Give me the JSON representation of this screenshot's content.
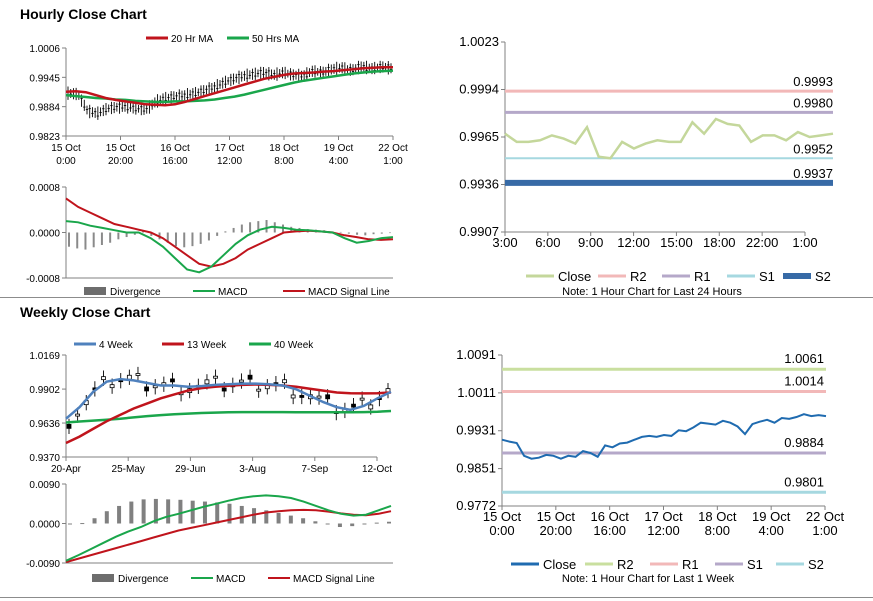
{
  "sections": {
    "hourly_title": "Hourly Close Chart",
    "weekly_title": "Weekly Close Chart"
  },
  "colors": {
    "ma_short": "#c0141c",
    "ma_long": "#1aa64b",
    "ma_4wk": "#4f81bd",
    "close_line": "#c4d79b",
    "r2": "#f2b8b8",
    "r1": "#b5a8c9",
    "s1": "#a6d8e0",
    "s2": "#376aa6",
    "divergence": "#6d6d6d",
    "weekly_close": "#1f6bb0",
    "weekly_r2": "#c9df9f",
    "weekly_r1": "#f2b8b8",
    "weekly_s1": "#b5a8c9",
    "weekly_s2": "#a6d8e0"
  },
  "chart_data": [
    {
      "id": "hourly-price",
      "type": "line",
      "title": "Hourly Close Chart",
      "legend": [
        "20 Hr MA",
        "50 Hrs MA"
      ],
      "y_ticks": [
        "1.0006",
        "0.9945",
        "0.9884",
        "0.9823"
      ],
      "ylim": [
        0.9823,
        1.0006
      ],
      "x_ticks": [
        "15 Oct\n0:00",
        "15 Oct\n20:00",
        "16 Oct\n16:00",
        "17 Oct\n12:00",
        "18 Oct\n8:00",
        "19 Oct\n4:00",
        "22 Oct\n1:00"
      ],
      "series": [
        {
          "name": "20 Hr MA",
          "values": [
            0.9915,
            0.9916,
            0.9914,
            0.9908,
            0.9902,
            0.9898,
            0.9895,
            0.9892,
            0.9889,
            0.9888,
            0.9887,
            0.9889,
            0.9894,
            0.99,
            0.9906,
            0.9912,
            0.9918,
            0.9924,
            0.993,
            0.9936,
            0.9942,
            0.9946,
            0.995,
            0.9953,
            0.9954,
            0.9955,
            0.9957,
            0.9958,
            0.996,
            0.9962,
            0.9964,
            0.9965,
            0.9966,
            0.9966
          ]
        },
        {
          "name": "50 Hrs MA",
          "values": [
            0.9908,
            0.9906,
            0.9904,
            0.9902,
            0.9901,
            0.9899,
            0.9898,
            0.9896,
            0.9895,
            0.9894,
            0.9894,
            0.9895,
            0.9895,
            0.9896,
            0.9897,
            0.9899,
            0.9902,
            0.9905,
            0.9909,
            0.9914,
            0.9919,
            0.9924,
            0.9929,
            0.9934,
            0.9938,
            0.9941,
            0.9944,
            0.9947,
            0.995,
            0.9953,
            0.9955,
            0.9957,
            0.9958,
            0.9959
          ]
        },
        {
          "name": "Close",
          "values": [
            0.9912,
            0.991,
            0.9875,
            0.987,
            0.988,
            0.9883,
            0.9884,
            0.988,
            0.9878,
            0.9895,
            0.9902,
            0.9905,
            0.9908,
            0.9912,
            0.9918,
            0.9925,
            0.9935,
            0.9942,
            0.9948,
            0.9952,
            0.9955,
            0.995,
            0.9955,
            0.995,
            0.9948,
            0.9958,
            0.9955,
            0.9962,
            0.9965,
            0.996,
            0.9968,
            0.9963,
            0.9967,
            0.9964
          ]
        }
      ]
    },
    {
      "id": "hourly-macd",
      "type": "line",
      "legend": [
        "Divergence",
        "MACD",
        "MACD Signal Line"
      ],
      "y_ticks": [
        "0.0008",
        "0.0000",
        "-0.0008"
      ],
      "ylim": [
        -0.0008,
        0.0008
      ],
      "series": [
        {
          "name": "Divergence",
          "values": [
            -0.00025,
            -0.00028,
            -0.0003,
            -0.00026,
            -0.00022,
            -0.00018,
            -0.00012,
            -8e-05,
            -4e-05,
            2e-05,
            -6e-05,
            -0.00012,
            -0.00018,
            -0.00024,
            -0.00026,
            -0.00024,
            -0.0002,
            -0.00014,
            -6e-05,
            2e-05,
            8e-05,
            0.00014,
            0.00018,
            0.0002,
            0.00022,
            0.00018,
            0.00014,
            0.0001,
            8e-05,
            6e-05,
            5e-05,
            4e-05,
            2e-05,
            1e-05,
            -2e-05,
            -4e-05,
            -5e-05,
            -3e-05,
            -2e-05,
            -1e-05
          ]
        },
        {
          "name": "MACD",
          "values": [
            0.0002,
            0.00018,
            0.00012,
            8e-05,
            4e-05,
            0.0,
            0.0,
            -0.0001,
            -0.00025,
            -0.00045,
            -0.00065,
            -0.0007,
            -0.0006,
            -0.0004,
            -0.0002,
            -5e-05,
            5e-05,
            0.0001,
            8e-05,
            5e-05,
            4e-05,
            2e-05,
            0.0,
            -0.0001,
            -0.00018,
            -0.00015,
            -0.0001,
            -8e-05
          ]
        },
        {
          "name": "MACD Signal Line",
          "values": [
            0.0006,
            0.00045,
            0.00035,
            0.00025,
            0.00015,
            0.0001,
            5e-05,
            0.0,
            -0.0001,
            -0.00025,
            -0.0004,
            -0.00055,
            -0.0006,
            -0.00055,
            -0.00045,
            -0.0003,
            -0.0002,
            -0.0001,
            0.0,
            2e-05,
            3e-05,
            2e-05,
            0.0,
            -5e-05,
            -8e-05,
            -0.00012,
            -0.00013,
            -0.00012
          ]
        }
      ]
    },
    {
      "id": "hourly-levels",
      "type": "line",
      "y_ticks": [
        "1.0023",
        "0.9994",
        "0.9965",
        "0.9936",
        "0.9907"
      ],
      "ylim": [
        0.9907,
        1.0023
      ],
      "x_ticks": [
        "3:00",
        "6:00",
        "9:00",
        "12:00",
        "15:00",
        "18:00",
        "22:00",
        "1:00"
      ],
      "levels": [
        {
          "name": "R2",
          "value": 0.9993,
          "label": "0.9993"
        },
        {
          "name": "R1",
          "value": 0.998,
          "label": "0.9980"
        },
        {
          "name": "S1",
          "value": 0.9952,
          "label": "0.9952"
        },
        {
          "name": "S2",
          "value": 0.9937,
          "label": "0.9937"
        }
      ],
      "series": [
        {
          "name": "Close",
          "values": [
            0.9967,
            0.9962,
            0.9962,
            0.9963,
            0.9966,
            0.9964,
            0.9961,
            0.9971,
            0.9953,
            0.9952,
            0.9962,
            0.9958,
            0.9961,
            0.9963,
            0.9962,
            0.9962,
            0.9974,
            0.9967,
            0.9976,
            0.9973,
            0.9972,
            0.9962,
            0.9966,
            0.9966,
            0.9963,
            0.9968,
            0.9965,
            0.9966,
            0.9967
          ]
        }
      ],
      "legend": [
        "Close",
        "R2",
        "R1",
        "S1",
        "S2"
      ],
      "note": "Note: 1 Hour Chart for Last 24 Hours"
    },
    {
      "id": "weekly-price",
      "type": "line",
      "title": "Weekly Close Chart",
      "legend": [
        "4 Week",
        "13 Week",
        "40 Week"
      ],
      "y_ticks": [
        "1.0169",
        "0.9902",
        "0.9636",
        "0.9370"
      ],
      "ylim": [
        0.937,
        1.0169
      ],
      "x_ticks": [
        "20-Apr",
        "25-May",
        "29-Jun",
        "3-Aug",
        "7-Sep",
        "12-Oct"
      ],
      "series": [
        {
          "name": "4 Week",
          "values": [
            0.967,
            0.976,
            0.988,
            0.996,
            0.998,
            0.997,
            0.995,
            0.993,
            0.993,
            0.992,
            0.9925,
            0.9935,
            0.994,
            0.9945,
            0.9945,
            0.994,
            0.993,
            0.99,
            0.985,
            0.98,
            0.976,
            0.974,
            0.977,
            0.983,
            0.988
          ]
        },
        {
          "name": "13 Week",
          "values": [
            0.948,
            0.953,
            0.959,
            0.965,
            0.97,
            0.975,
            0.979,
            0.983,
            0.986,
            0.989,
            0.991,
            0.992,
            0.9928,
            0.9935,
            0.9938,
            0.9935,
            0.993,
            0.992,
            0.9905,
            0.989,
            0.9875,
            0.987,
            0.9868,
            0.987,
            0.9875
          ]
        },
        {
          "name": "40 Week",
          "values": [
            0.964,
            0.9648,
            0.9655,
            0.9662,
            0.967,
            0.968,
            0.969,
            0.9698,
            0.9705,
            0.971,
            0.9715,
            0.9718,
            0.972,
            0.9722,
            0.9722,
            0.9722,
            0.9722,
            0.9721,
            0.972,
            0.972,
            0.972,
            0.9721,
            0.9722,
            0.9725,
            0.973
          ]
        }
      ]
    },
    {
      "id": "weekly-macd",
      "type": "line",
      "legend": [
        "Divergence",
        "MACD",
        "MACD Signal Line"
      ],
      "y_ticks": [
        "0.0090",
        "0.0000",
        "-0.0090"
      ],
      "ylim": [
        -0.009,
        0.009
      ],
      "series": [
        {
          "name": "Divergence",
          "values": [
            -0.0001,
            0.0001,
            0.0012,
            0.0028,
            0.004,
            0.005,
            0.0055,
            0.0056,
            0.0055,
            0.0054,
            0.0052,
            0.005,
            0.0048,
            0.0045,
            0.004,
            0.0035,
            0.003,
            0.0024,
            0.0018,
            0.0012,
            0.0005,
            0.0,
            -0.0008,
            -0.0006,
            -0.0002,
            0.0002,
            0.0004
          ]
        },
        {
          "name": "MACD",
          "values": [
            -0.0085,
            -0.0072,
            -0.0058,
            -0.0044,
            -0.003,
            -0.0018,
            -0.0008,
            0.0005,
            0.0015,
            0.0022,
            0.003,
            0.0038,
            0.0045,
            0.0052,
            0.0058,
            0.0062,
            0.0064,
            0.0062,
            0.0058,
            0.005,
            0.004,
            0.003,
            0.0022,
            0.0018,
            0.002,
            0.003,
            0.004
          ]
        },
        {
          "name": "MACD Signal Line",
          "values": [
            -0.0088,
            -0.008,
            -0.0072,
            -0.0064,
            -0.0056,
            -0.0048,
            -0.004,
            -0.0032,
            -0.0024,
            -0.0016,
            -0.001,
            -0.0004,
            0.0002,
            0.0008,
            0.0014,
            0.002,
            0.0025,
            0.0028,
            0.003,
            0.0031,
            0.003,
            0.0027,
            0.0023,
            0.002,
            0.0019,
            0.0022,
            0.0028
          ]
        }
      ]
    },
    {
      "id": "weekly-levels",
      "type": "line",
      "y_ticks": [
        "1.0091",
        "1.0011",
        "0.9931",
        "0.9851",
        "0.9772"
      ],
      "ylim": [
        0.9772,
        1.0091
      ],
      "x_ticks": [
        "15 Oct\n0:00",
        "15 Oct\n20:00",
        "16 Oct\n16:00",
        "17 Oct\n12:00",
        "18 Oct\n8:00",
        "19 Oct\n4:00",
        "22 Oct\n1:00"
      ],
      "levels": [
        {
          "name": "R2",
          "value": 1.0061,
          "label": "1.0061"
        },
        {
          "name": "R1",
          "value": 1.0014,
          "label": "1.0014"
        },
        {
          "name": "S1",
          "value": 0.9884,
          "label": "0.9884"
        },
        {
          "name": "S2",
          "value": 0.9801,
          "label": "0.9801"
        }
      ],
      "series": [
        {
          "name": "Close",
          "values": [
            0.9912,
            0.9908,
            0.9905,
            0.9878,
            0.9872,
            0.9874,
            0.988,
            0.9878,
            0.9872,
            0.9878,
            0.9876,
            0.9888,
            0.9884,
            0.9876,
            0.99,
            0.9896,
            0.9904,
            0.9906,
            0.9912,
            0.9918,
            0.992,
            0.9918,
            0.9922,
            0.992,
            0.9932,
            0.993,
            0.9938,
            0.9948,
            0.9946,
            0.9944,
            0.9952,
            0.9948,
            0.994,
            0.9924,
            0.9945,
            0.995,
            0.9954,
            0.9948,
            0.9958,
            0.9956,
            0.996,
            0.9966,
            0.9962,
            0.9964,
            0.9962
          ]
        }
      ],
      "legend": [
        "Close",
        "R2",
        "R1",
        "S1",
        "S2"
      ],
      "note": "Note: 1 Hour Chart for Last 1 Week"
    }
  ]
}
